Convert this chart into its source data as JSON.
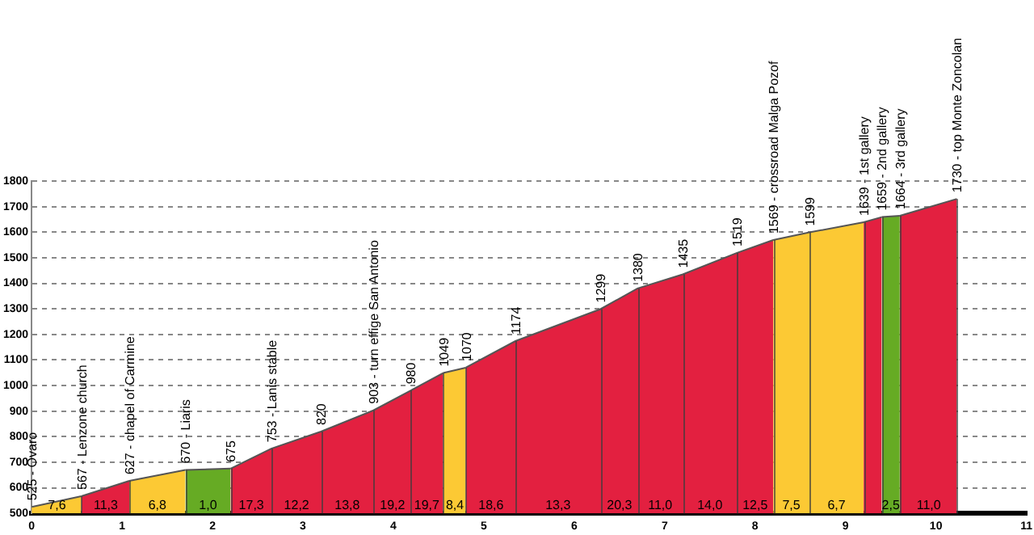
{
  "chart_data": {
    "type": "area",
    "series": [
      {
        "color": "#fcc934",
        "x": [
          0,
          0.55
        ],
        "values": [
          525,
          567
        ],
        "value_labels": [
          "525 - Ovaro",
          "567 - Lenzone church"
        ]
      },
      {
        "color": "#e32040",
        "x": [
          0.55,
          1.08
        ],
        "values": [
          567,
          627
        ],
        "value_labels": [
          null,
          "627 - chapel of Carmine"
        ]
      },
      {
        "color": "#fcc934",
        "x": [
          1.08,
          1.7
        ],
        "values": [
          627,
          670
        ],
        "value_labels": [
          null,
          "670 - Liaris"
        ]
      },
      {
        "color": "#66ab24",
        "x": [
          1.7,
          2.2
        ],
        "values": [
          670,
          675
        ],
        "value_labels": [
          null,
          "675"
        ]
      },
      {
        "color": "#e32040",
        "x": [
          2.2,
          2.65,
          3.2,
          3.78,
          4.19,
          4.55
        ],
        "values": [
          675,
          753,
          820,
          903,
          980,
          1049
        ],
        "value_labels": [
          null,
          "753 - Lanis stable",
          "820",
          "903 - turn effige San Antonio",
          "980",
          "1049"
        ]
      },
      {
        "color": "#fcc934",
        "x": [
          4.55,
          4.8
        ],
        "values": [
          1049,
          1070
        ],
        "value_labels": [
          null,
          "1070"
        ]
      },
      {
        "color": "#e32040",
        "x": [
          4.8,
          5.35,
          6.29,
          6.7,
          7.2,
          7.8,
          8.2
        ],
        "values": [
          1070,
          1174,
          1299,
          1380,
          1435,
          1519,
          1569
        ],
        "value_labels": [
          null,
          "1174",
          "1299",
          "1380",
          "1435",
          "1519",
          "1569 - crossroad Malga Pozof"
        ]
      },
      {
        "color": "#fcc934",
        "x": [
          8.2,
          8.6,
          9.2
        ],
        "values": [
          1569,
          1599,
          1639
        ],
        "value_labels": [
          null,
          "1599",
          "1639 - 1st gallery"
        ]
      },
      {
        "color": "#e32040",
        "x": [
          9.2,
          9.4
        ],
        "values": [
          1639,
          1659
        ],
        "value_labels": [
          null,
          "1659 - 2nd gallery"
        ]
      },
      {
        "color": "#66ab24",
        "x": [
          9.4,
          9.6
        ],
        "values": [
          1659,
          1664
        ],
        "value_labels": [
          null,
          "1664 - 3rd gallery"
        ]
      },
      {
        "color": "#e32040",
        "x": [
          9.6,
          10.23
        ],
        "values": [
          1664,
          1730
        ],
        "value_labels": [
          null,
          "1730 - top Monte Zoncolan"
        ]
      }
    ],
    "annotations": [
      {
        "text": "7,6",
        "x": 0.28,
        "y": 530
      },
      {
        "text": "11,3",
        "x": 0.82,
        "y": 530
      },
      {
        "text": "6,8",
        "x": 1.39,
        "y": 530
      },
      {
        "text": "1,0",
        "x": 1.95,
        "y": 530
      },
      {
        "text": "17,3",
        "x": 2.43,
        "y": 530
      },
      {
        "text": "12,2",
        "x": 2.93,
        "y": 530
      },
      {
        "text": "13,8",
        "x": 3.49,
        "y": 530
      },
      {
        "text": "19,2",
        "x": 3.99,
        "y": 530
      },
      {
        "text": "19,7",
        "x": 4.37,
        "y": 530
      },
      {
        "text": "8,4",
        "x": 4.68,
        "y": 530
      },
      {
        "text": "18,6",
        "x": 5.08,
        "y": 530
      },
      {
        "text": "13,3",
        "x": 5.82,
        "y": 530
      },
      {
        "text": "20,3",
        "x": 6.5,
        "y": 530
      },
      {
        "text": "11,0",
        "x": 6.95,
        "y": 530
      },
      {
        "text": "14,0",
        "x": 7.5,
        "y": 530
      },
      {
        "text": "12,5",
        "x": 8.0,
        "y": 530
      },
      {
        "text": "7,5",
        "x": 8.4,
        "y": 530
      },
      {
        "text": "6,7",
        "x": 8.9,
        "y": 530
      },
      {
        "text": "2,5",
        "x": 9.5,
        "y": 530
      },
      {
        "text": "11,0",
        "x": 9.92,
        "y": 530
      }
    ],
    "xlim": [
      0,
      11
    ],
    "xticks": [
      0,
      1,
      2,
      3,
      4,
      5,
      6,
      7,
      8,
      9,
      10,
      11
    ],
    "ylim": [
      500,
      1800
    ],
    "yticks": [
      500,
      600,
      700,
      800,
      900,
      1000,
      1100,
      1200,
      1300,
      1400,
      1500,
      1600,
      1700,
      1800
    ],
    "grid": "y",
    "legend": false,
    "marker": "none"
  }
}
